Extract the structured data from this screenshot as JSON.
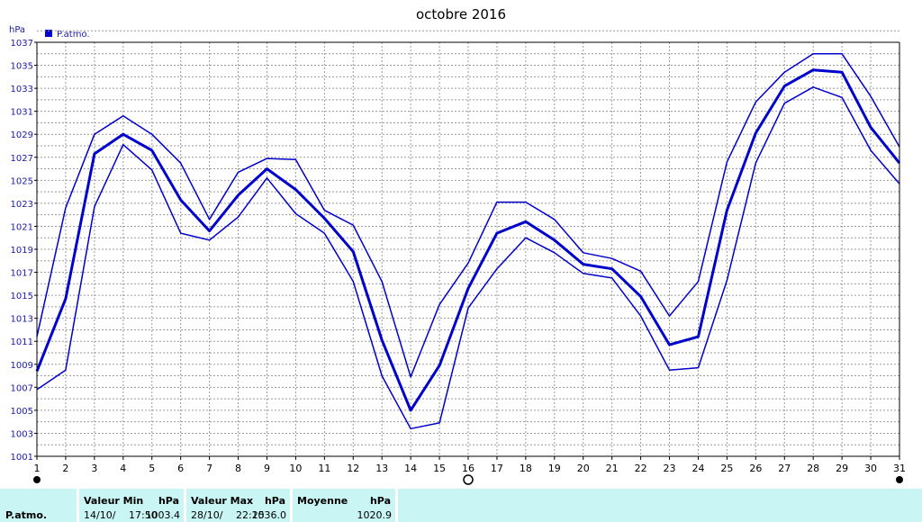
{
  "chart_data": {
    "type": "line",
    "title": "octobre 2016",
    "ylabel": "hPa",
    "ylim": [
      1001,
      1037
    ],
    "yticks": [
      1001,
      1003,
      1005,
      1007,
      1009,
      1011,
      1013,
      1015,
      1017,
      1019,
      1021,
      1023,
      1025,
      1027,
      1029,
      1031,
      1033,
      1035,
      1037
    ],
    "xticks": [
      "1",
      "2",
      "3",
      "4",
      "5",
      "6",
      "7",
      "8",
      "9",
      "10",
      "11",
      "12",
      "13",
      "14",
      "15",
      "16",
      "17",
      "18",
      "19",
      "20",
      "21",
      "22",
      "23",
      "24",
      "25",
      "26",
      "27",
      "28",
      "29",
      "30",
      "31"
    ],
    "x": [
      1,
      2,
      3,
      4,
      5,
      6,
      7,
      8,
      9,
      10,
      11,
      12,
      13,
      14,
      15,
      16,
      17,
      18,
      19,
      20,
      21,
      22,
      23,
      24,
      25,
      26,
      27,
      28,
      29,
      30,
      31
    ],
    "grid": true,
    "legend": {
      "placement": "top-left",
      "entries": [
        "P.atmo."
      ]
    },
    "colors": {
      "series": "#0000cc",
      "grid": "#9a9a9a",
      "axis": "#000000"
    },
    "series": [
      {
        "name": "P.atmo.",
        "role": "max",
        "values": [
          1011.4,
          1022.6,
          1029.0,
          1030.6,
          1029.0,
          1026.5,
          1021.6,
          1025.7,
          1026.9,
          1026.8,
          1022.4,
          1021.1,
          1016.2,
          1007.9,
          1014.2,
          1017.8,
          1023.1,
          1023.1,
          1021.6,
          1018.7,
          1018.2,
          1017.1,
          1013.2,
          1016.2,
          1026.6,
          1031.8,
          1034.4,
          1036.0,
          1036.0,
          1032.3,
          1027.9
        ]
      },
      {
        "name": "P.atmo.",
        "role": "mean",
        "values": [
          1008.4,
          1014.7,
          1027.3,
          1029.0,
          1027.6,
          1023.3,
          1020.6,
          1023.7,
          1026.0,
          1024.2,
          1021.7,
          1018.8,
          1011.1,
          1005.0,
          1008.9,
          1015.6,
          1020.4,
          1021.4,
          1019.8,
          1017.7,
          1017.3,
          1014.9,
          1010.7,
          1011.4,
          1022.4,
          1029.1,
          1033.2,
          1034.6,
          1034.4,
          1029.6,
          1026.5
        ]
      },
      {
        "name": "P.atmo.",
        "role": "min",
        "values": [
          1006.8,
          1008.5,
          1022.7,
          1028.1,
          1025.9,
          1020.4,
          1019.8,
          1021.8,
          1025.2,
          1022.1,
          1020.4,
          1016.2,
          1008.0,
          1003.4,
          1003.9,
          1013.9,
          1017.3,
          1020.0,
          1018.7,
          1016.9,
          1016.5,
          1013.2,
          1008.5,
          1008.7,
          1016.3,
          1026.5,
          1031.7,
          1033.1,
          1032.2,
          1027.6,
          1024.7
        ]
      }
    ],
    "markers": [
      {
        "day": 1,
        "style": "filled"
      },
      {
        "day": 16,
        "style": "open"
      },
      {
        "day": 31,
        "style": "filled"
      }
    ]
  },
  "stats": {
    "row_label": "P.atmo.",
    "min": {
      "header": "Valeur Min",
      "unit": "hPa",
      "date": "14/10/",
      "time": "17:50",
      "value": "1003.4"
    },
    "max": {
      "header": "Valeur Max",
      "unit": "hPa",
      "date": "28/10/",
      "time": "22:25",
      "value": "1036.0"
    },
    "mean": {
      "header": "Moyenne",
      "unit": "hPa",
      "value": "1020.9"
    }
  }
}
